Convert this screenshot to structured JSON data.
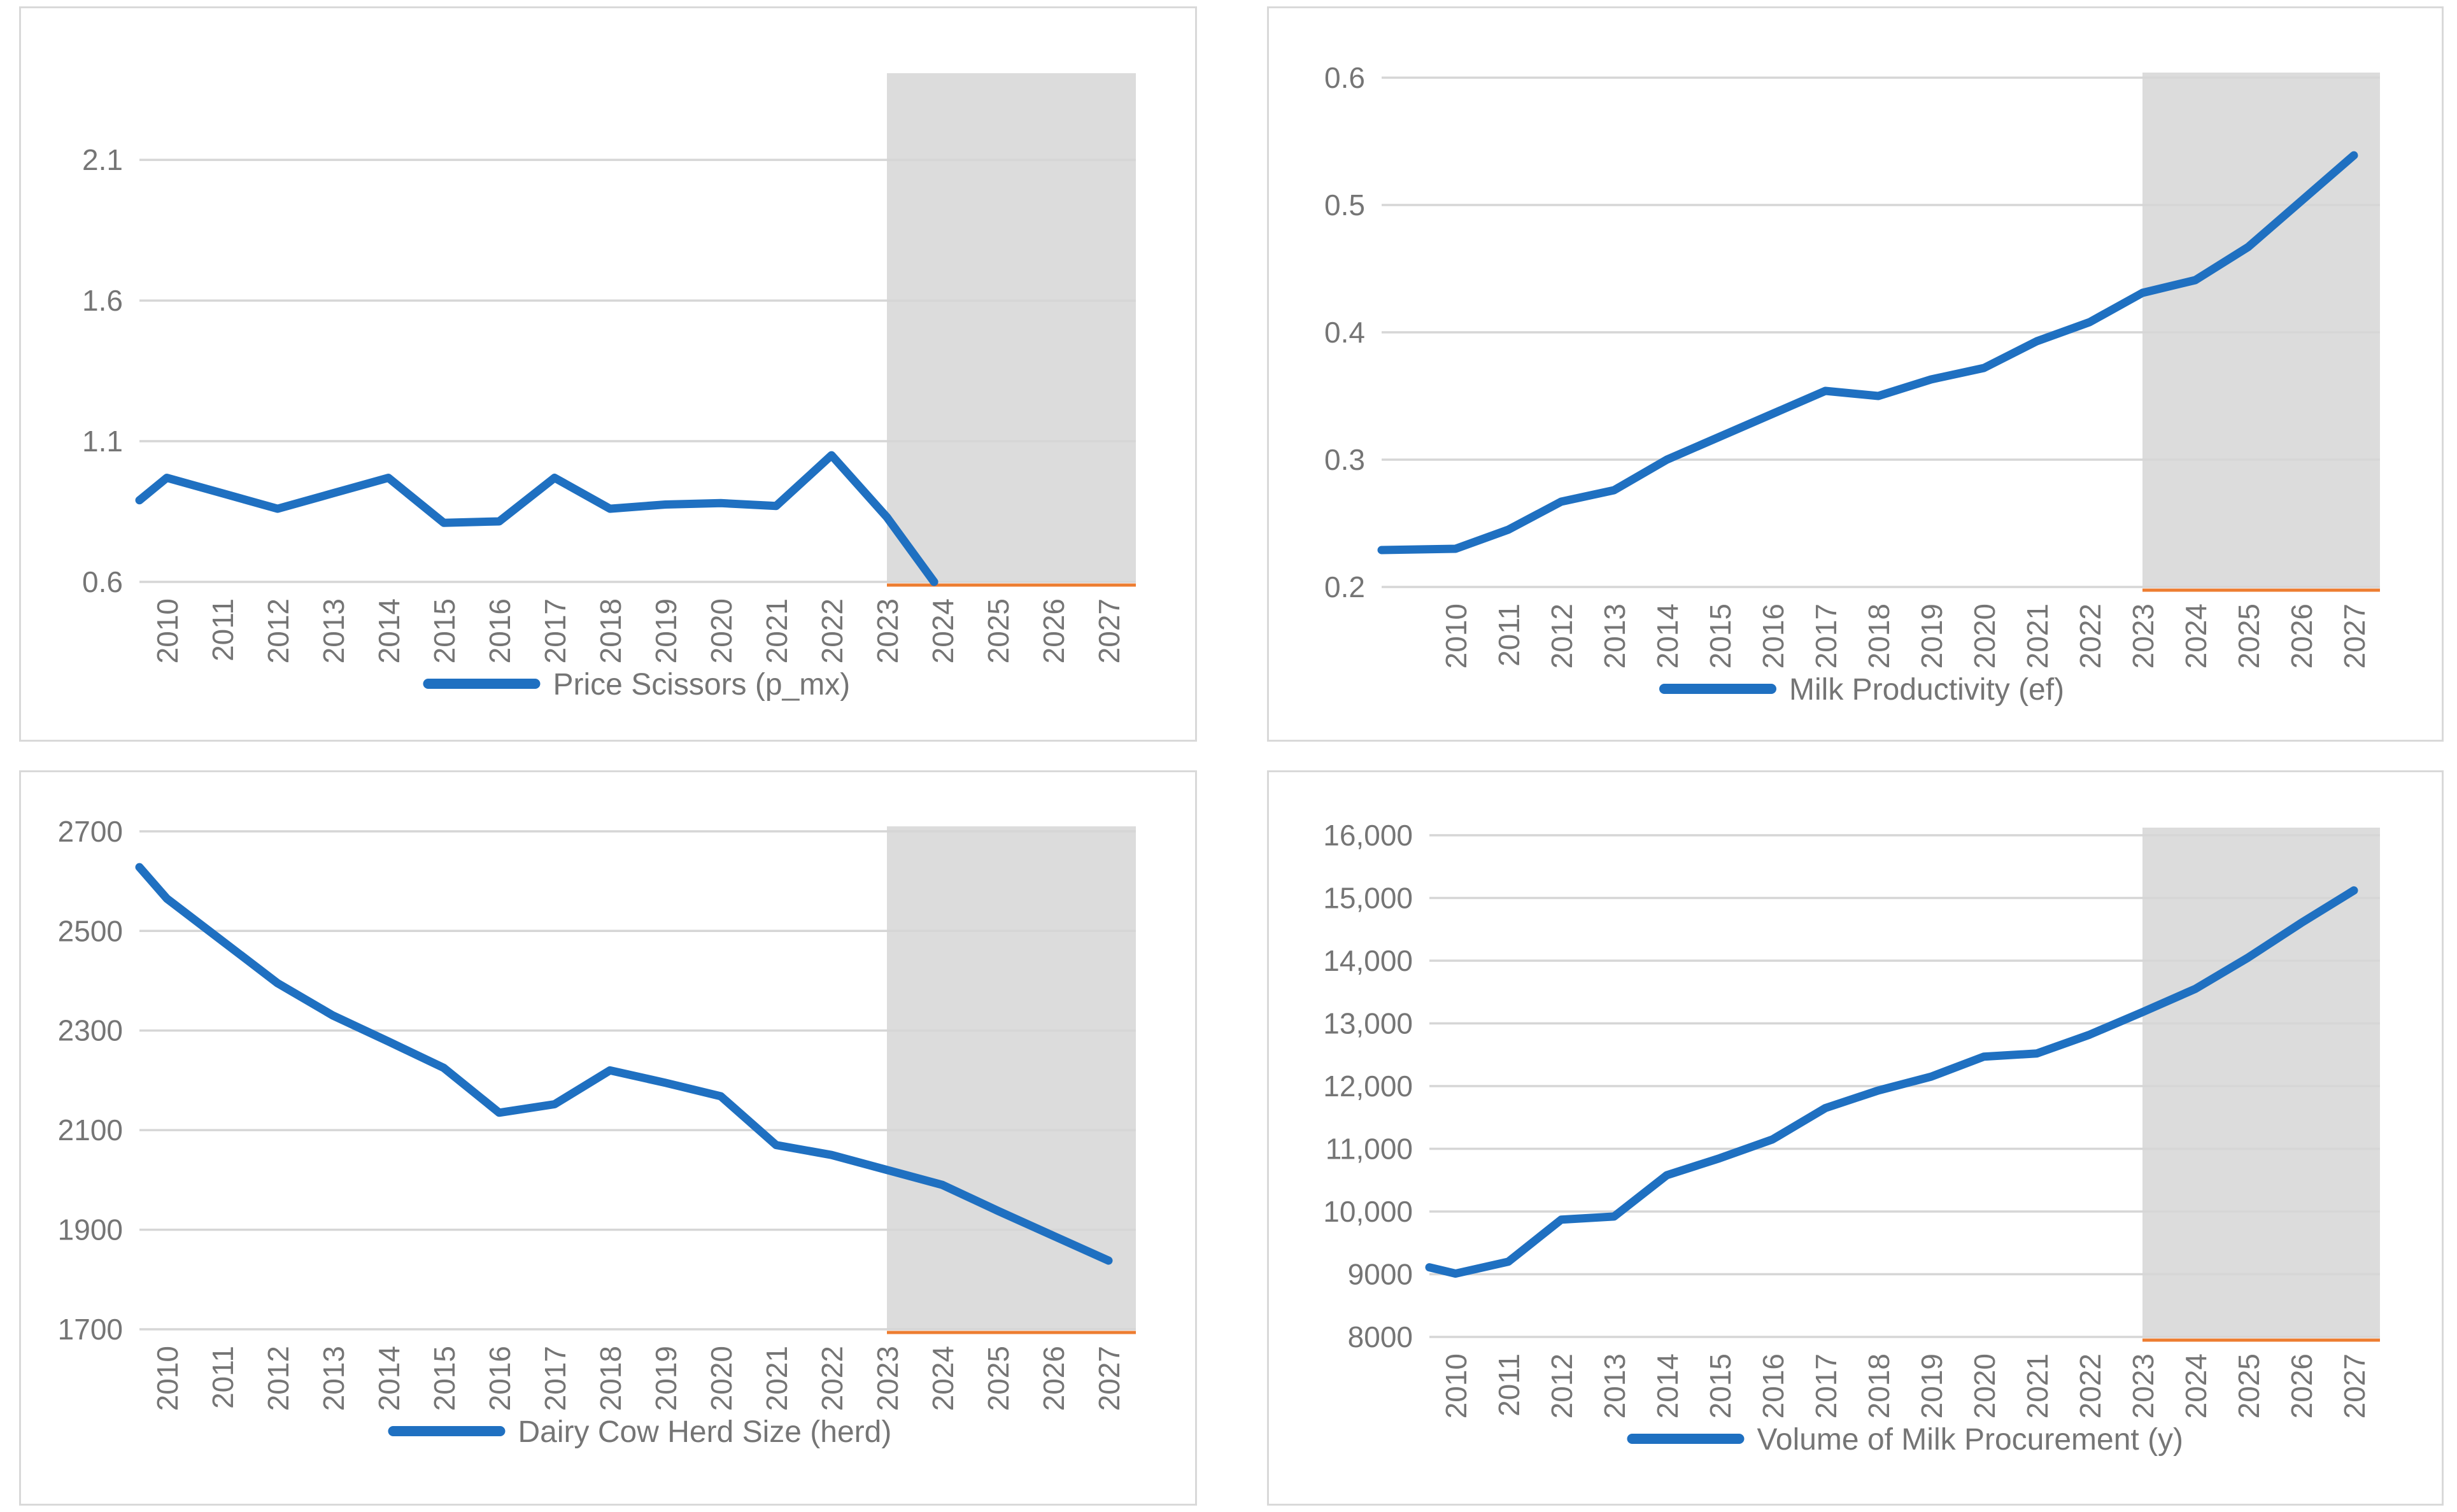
{
  "page": {
    "background": "#ffffff",
    "forecast_region_start": "2023",
    "colors": {
      "series_blue": "#1F70C1",
      "forecast_baseline_orange": "#ED7D31",
      "forecast_shading_gray": "#DCDCDC",
      "gridline_gray": "#D6D6D6",
      "card_border_gray": "#D9D9D9",
      "label_gray": "#757575"
    }
  },
  "chart_data": [
    {
      "type": "line",
      "legend": "Price Scissors (p_mx)",
      "legend_position": "bottom",
      "grid": true,
      "x_categories": [
        "2010",
        "2011",
        "2012",
        "2013",
        "2014",
        "2015",
        "2016",
        "2017",
        "2018",
        "2019",
        "2020",
        "2021",
        "2022",
        "2023",
        "2024",
        "2025",
        "2026",
        "2027"
      ],
      "values": [
        0.97,
        0.915,
        0.86,
        0.915,
        0.97,
        0.81,
        0.815,
        0.97,
        0.86,
        0.875,
        0.88,
        0.87,
        1.05,
        0.83,
        0.56
      ],
      "edge_value": 0.89,
      "note": "line drops below axis minimum after 2023 and is clipped near 2024; no visible values 2025-2027",
      "y_axis": {
        "min": 0.6,
        "max": 2.408,
        "ticks": [
          0.6,
          1.1,
          1.6,
          2.1
        ],
        "tick_labels": [
          "0.6",
          "1.1",
          "1.6",
          "2.1"
        ]
      },
      "forecast_region": {
        "start": "2023",
        "end": "2027"
      },
      "forecast_baseline": {
        "color": "#ED7D31",
        "position": "at axis minimum within forecast region"
      }
    },
    {
      "type": "line",
      "legend": "Milk Productivity (ef)",
      "legend_position": "bottom",
      "grid": true,
      "x_categories": [
        "2010",
        "2011",
        "2012",
        "2013",
        "2014",
        "2015",
        "2016",
        "2017",
        "2018",
        "2019",
        "2020",
        "2021",
        "2022",
        "2023",
        "2024",
        "2025",
        "2026",
        "2027"
      ],
      "values": [
        0.23,
        0.245,
        0.267,
        0.276,
        0.3,
        0.318,
        0.336,
        0.354,
        0.35,
        0.363,
        0.372,
        0.393,
        0.408,
        0.431,
        0.441,
        0.467,
        0.503,
        0.539
      ],
      "edge_value": 0.229,
      "y_axis": {
        "min": 0.2,
        "max": 0.604,
        "ticks": [
          0.2,
          0.3,
          0.4,
          0.5,
          0.6
        ],
        "tick_labels": [
          "0.2",
          "0.3",
          "0.4",
          "0.5",
          "0.6"
        ]
      },
      "forecast_region": {
        "start": "2023",
        "end": "2027"
      },
      "forecast_baseline": {
        "color": "#ED7D31",
        "position": "at axis minimum within forecast region"
      }
    },
    {
      "type": "line",
      "legend": "Dairy Cow Herd Size (herd)",
      "legend_position": "bottom",
      "grid": true,
      "x_categories": [
        "2010",
        "2011",
        "2012",
        "2013",
        "2014",
        "2015",
        "2016",
        "2017",
        "2018",
        "2019",
        "2020",
        "2021",
        "2022",
        "2023",
        "2024",
        "2025",
        "2026",
        "2027"
      ],
      "values": [
        2565,
        2480,
        2395,
        2330,
        2278,
        2225,
        2135,
        2152,
        2220,
        2195,
        2168,
        2070,
        2050,
        2020,
        1990,
        1938,
        1888,
        1838
      ],
      "edge_value": 2628,
      "y_axis": {
        "min": 1700,
        "max": 2710,
        "ticks": [
          1700,
          1900,
          2100,
          2300,
          2500,
          2700
        ],
        "tick_labels": [
          "1700",
          "1900",
          "2100",
          "2300",
          "2500",
          "2700"
        ]
      },
      "forecast_region": {
        "start": "2023",
        "end": "2027"
      },
      "forecast_baseline": {
        "color": "#ED7D31",
        "position": "at axis minimum within forecast region"
      }
    },
    {
      "type": "line",
      "legend": "Volume of Milk Procurement (y)",
      "legend_position": "bottom",
      "grid": true,
      "x_categories": [
        "2010",
        "2011",
        "2012",
        "2013",
        "2014",
        "2015",
        "2016",
        "2017",
        "2018",
        "2019",
        "2020",
        "2021",
        "2022",
        "2023",
        "2024",
        "2025",
        "2026",
        "2027"
      ],
      "values": [
        9010,
        9200,
        9870,
        9920,
        10580,
        10850,
        11150,
        11650,
        11930,
        12150,
        12470,
        12520,
        12820,
        13180,
        13550,
        14050,
        14600,
        15120
      ],
      "edge_value": 9110,
      "y_axis": {
        "min": 8000,
        "max": 16122,
        "ticks": [
          8000,
          9000,
          10000,
          11000,
          12000,
          13000,
          14000,
          15000,
          16000
        ],
        "tick_labels": [
          "8000",
          "9000",
          "10,000",
          "11,000",
          "12,000",
          "13,000",
          "14,000",
          "15,000",
          "16,000"
        ]
      },
      "forecast_region": {
        "start": "2023",
        "end": "2027"
      },
      "forecast_baseline": {
        "color": "#ED7D31",
        "position": "at axis minimum within forecast region"
      }
    }
  ]
}
